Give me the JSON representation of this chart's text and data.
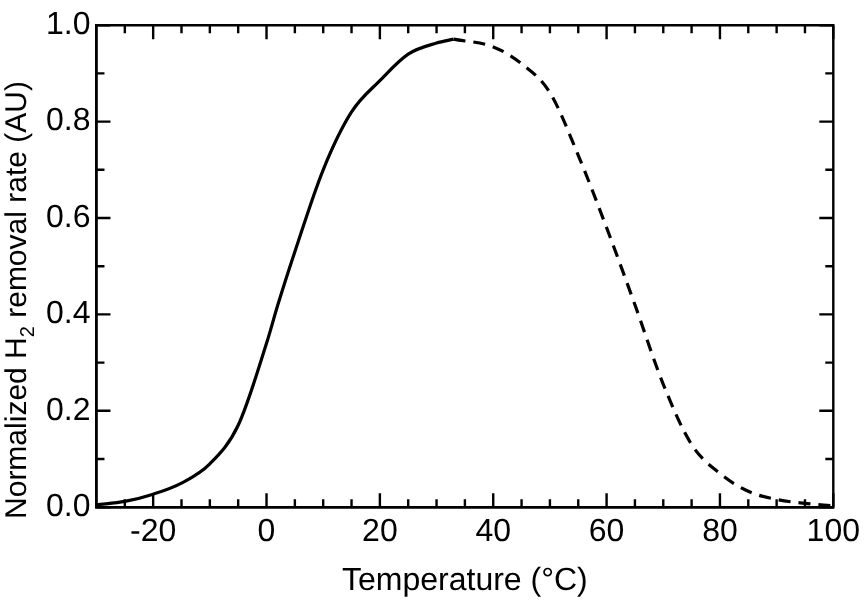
{
  "chart_data": {
    "type": "line",
    "xlabel": "Temperature (°C)",
    "ylabel": "Normalized H$_{2}$ removal rate (AU)",
    "xlim": [
      -30,
      100
    ],
    "ylim": [
      0,
      1.0
    ],
    "xticks": [
      {
        "value": -25,
        "label": null
      },
      -20,
      {
        "value": -15,
        "label": null
      },
      {
        "value": -10,
        "label": null
      },
      {
        "value": -5,
        "label": null
      },
      0,
      {
        "value": 5,
        "label": null
      },
      {
        "value": 10,
        "label": null
      },
      {
        "value": 15,
        "label": null
      },
      20,
      {
        "value": 25,
        "label": null
      },
      {
        "value": 30,
        "label": null
      },
      {
        "value": 35,
        "label": null
      },
      40,
      {
        "value": 45,
        "label": null
      },
      {
        "value": 50,
        "label": null
      },
      {
        "value": 55,
        "label": null
      },
      60,
      {
        "value": 65,
        "label": null
      },
      {
        "value": 70,
        "label": null
      },
      {
        "value": 75,
        "label": null
      },
      80,
      {
        "value": 85,
        "label": null
      },
      {
        "value": 90,
        "label": null
      },
      {
        "value": 95,
        "label": null
      },
      100
    ],
    "yticks": [
      {
        "value": 0,
        "label": "0.0"
      },
      {
        "value": 0.1,
        "label": null
      },
      0.2,
      {
        "value": 0.3,
        "label": null
      },
      0.4,
      {
        "value": 0.5,
        "label": null
      },
      0.6,
      {
        "value": 0.7,
        "label": null
      },
      0.8,
      {
        "value": 0.9,
        "label": null
      },
      {
        "value": 1.0,
        "label": "1.0"
      }
    ],
    "grid": false,
    "legend": false,
    "marker": "none",
    "series": [
      {
        "color": "#000000",
        "line_style": "solid",
        "x": [
          -30,
          -25,
          -20,
          -15,
          -10,
          -5,
          0,
          2,
          5,
          10,
          15,
          20,
          25,
          30,
          33
        ],
        "values": [
          0.005,
          0.012,
          0.027,
          0.05,
          0.09,
          0.17,
          0.34,
          0.42,
          0.53,
          0.7,
          0.82,
          0.885,
          0.94,
          0.963,
          0.971
        ]
      },
      {
        "color": "#000000",
        "line_style": "dashed",
        "x": [
          33,
          40,
          45,
          50,
          55,
          60,
          65,
          70,
          75,
          80,
          85,
          90,
          95,
          100
        ],
        "values": [
          0.971,
          0.955,
          0.92,
          0.86,
          0.73,
          0.58,
          0.42,
          0.255,
          0.13,
          0.07,
          0.033,
          0.016,
          0.008,
          0.003
        ]
      }
    ]
  }
}
